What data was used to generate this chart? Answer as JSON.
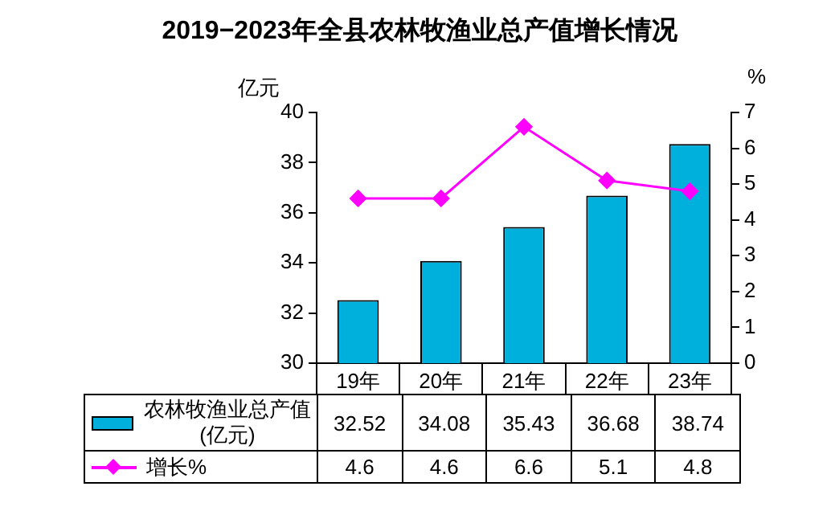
{
  "chart_data": {
    "type": "bar",
    "title": "2019−2023年全县农林牧渔业总产值增长情况",
    "ylabel": "亿元",
    "y2label": "%",
    "categories": [
      "19年",
      "20年",
      "21年",
      "22年",
      "23年"
    ],
    "series": [
      {
        "name": "农林牧渔业总产值(亿元)",
        "color": "#00b0dc",
        "values": [
          32.52,
          34.08,
          35.43,
          36.68,
          38.74
        ]
      },
      {
        "name": "增长%",
        "type": "line",
        "axis": "y2",
        "color": "#ff00ff",
        "marker": "diamond",
        "values": [
          4.6,
          4.6,
          6.6,
          5.1,
          4.8
        ]
      }
    ],
    "ylim": [
      30,
      40
    ],
    "yticks": [
      30,
      32,
      34,
      36,
      38,
      40
    ],
    "y2lim": [
      0,
      7
    ],
    "y2ticks": [
      0,
      1,
      2,
      3,
      4,
      5,
      6,
      7
    ],
    "grid": false,
    "legend": "bottom",
    "data_labels": true
  }
}
